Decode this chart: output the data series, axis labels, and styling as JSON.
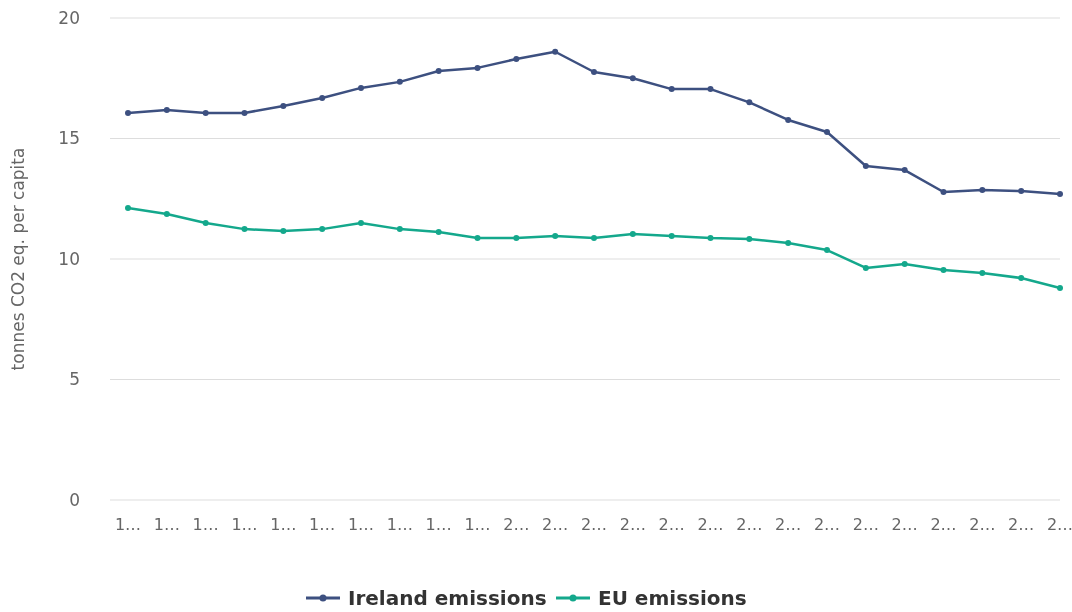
{
  "chart_data": {
    "type": "line",
    "ylabel": "tonnes CO2 eq. per capita",
    "categories": [
      "1…",
      "1…",
      "1…",
      "1…",
      "1…",
      "1…",
      "1…",
      "1…",
      "1…",
      "1…",
      "2…",
      "2…",
      "2…",
      "2…",
      "2…",
      "2…",
      "2…",
      "2…",
      "2…",
      "2…",
      "2…",
      "2…",
      "2…",
      "2…",
      "2…"
    ],
    "series": [
      {
        "name": "Ireland emissions",
        "color": "#3d5080",
        "values": [
          16.06,
          16.18,
          16.06,
          16.06,
          16.35,
          16.68,
          17.1,
          17.35,
          17.8,
          17.93,
          18.3,
          18.6,
          17.76,
          17.5,
          17.05,
          17.05,
          16.5,
          15.77,
          15.27,
          13.86,
          13.69,
          12.78,
          12.86,
          12.82,
          12.7
        ]
      },
      {
        "name": "EU emissions",
        "color": "#14a88c",
        "values": [
          12.12,
          11.87,
          11.49,
          11.24,
          11.16,
          11.24,
          11.49,
          11.24,
          11.12,
          10.87,
          10.87,
          10.95,
          10.87,
          11.04,
          10.95,
          10.87,
          10.83,
          10.66,
          10.37,
          9.63,
          9.79,
          9.54,
          9.42,
          9.21,
          8.8
        ]
      }
    ],
    "ylim": [
      0,
      20
    ],
    "yticks": [
      0,
      5,
      10,
      15,
      20
    ],
    "grid": "y",
    "legend": "bottom",
    "marker": "circle",
    "line_style": "solid"
  }
}
